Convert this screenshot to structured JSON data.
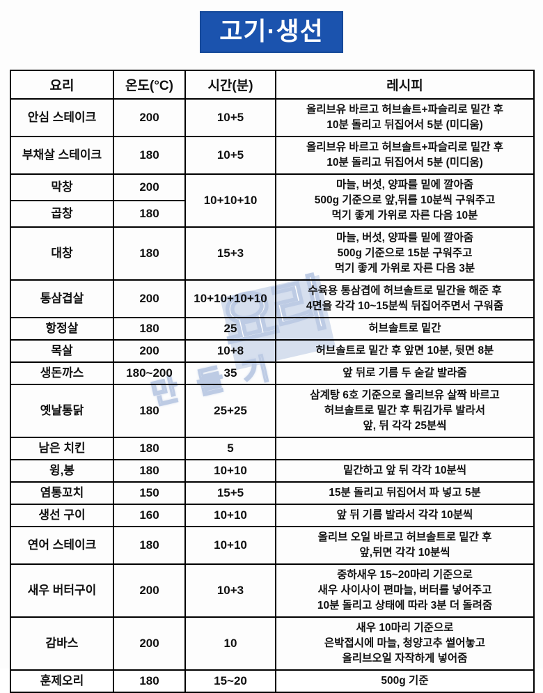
{
  "title": "고기·생선",
  "colors": {
    "title_bg": "#1b53ae",
    "title_text": "#ffffff",
    "table_border": "#000000",
    "watermark_blue": "#c6d2e8"
  },
  "watermark": {
    "main": "요리",
    "sub": "만들기"
  },
  "table": {
    "headers": [
      "요리",
      "온도(°C)",
      "시간(분)",
      "레시피"
    ],
    "rows": [
      {
        "dish": "안심 스테이크",
        "temp": "200",
        "time": "10+5",
        "recipe": [
          "올리브유 바르고 허브솔트+파슬리로 밑간 후",
          "10분 돌리고 뒤집어서 5분 (미디움)"
        ]
      },
      {
        "dish": "부채살 스테이크",
        "temp": "180",
        "time": "10+5",
        "recipe": [
          "올리브유 바르고 허브솔트+파슬리로 밑간 후",
          "10분 돌리고 뒤집어서 5분 (미디움)"
        ]
      },
      {
        "dish": "막창",
        "temp": "200",
        "time": "10+10+10",
        "time_span": 2,
        "recipe": [
          "마늘, 버섯, 양파를 밑에 깔아줌",
          "500g 기준으로 앞,뒤를 10분씩 구워주고",
          "먹기 좋게 가위로 자른 다음 10분"
        ],
        "recipe_span": 2
      },
      {
        "dish": "곱창",
        "temp": "180",
        "time": null,
        "recipe": null
      },
      {
        "dish": "대창",
        "temp": "180",
        "time": "15+3",
        "recipe": [
          "마늘, 버섯, 양파를 밑에 깔아줌",
          "500g 기준으로 15분 구워주고",
          "먹기 좋게 가위로 자른 다음 3분"
        ]
      },
      {
        "dish": "통삼겹살",
        "temp": "200",
        "time": "10+10+10+10",
        "recipe": [
          "수육용 통삼겹에 허브솔트로 밑간을 해준 후",
          "4면을 각각 10~15분씩 뒤집어주면서 구워줌"
        ]
      },
      {
        "dish": "항정살",
        "temp": "180",
        "time": "25",
        "recipe": [
          "허브솔트로 밑간"
        ]
      },
      {
        "dish": "목살",
        "temp": "200",
        "time": "10+8",
        "recipe": [
          "허브솔트로 밑간 후 앞면 10분, 뒷면 8분"
        ]
      },
      {
        "dish": "생돈까스",
        "temp": "180~200",
        "time": "35",
        "recipe": [
          "앞 뒤로 기름 두 숟갈 발라줌"
        ]
      },
      {
        "dish": "옛날통닭",
        "temp": "180",
        "time": "25+25",
        "recipe": [
          "삼계탕 6호 기준으로 올리브유 살짝 바르고",
          "허브솔트로 밑간 후 튀김가루 발라서",
          "앞, 뒤 각각 25분씩"
        ]
      },
      {
        "dish": "남은 치킨",
        "temp": "180",
        "time": "5",
        "recipe": []
      },
      {
        "dish": "윙,봉",
        "temp": "180",
        "time": "10+10",
        "recipe": [
          "밑간하고 앞 뒤 각각 10분씩"
        ]
      },
      {
        "dish": "염통꼬치",
        "temp": "150",
        "time": "15+5",
        "recipe": [
          "15분 돌리고 뒤집어서 파 넣고 5분"
        ]
      },
      {
        "dish": "생선 구이",
        "temp": "160",
        "time": "10+10",
        "recipe": [
          "앞 뒤 기름 발라서 각각 10분씩"
        ]
      },
      {
        "dish": "연어 스테이크",
        "temp": "180",
        "time": "10+10",
        "recipe": [
          "올리브 오일 바르고 허브솔트로 밑간 후",
          "앞,뒤면 각각 10분씩"
        ]
      },
      {
        "dish": "새우 버터구이",
        "temp": "200",
        "time": "10+3",
        "recipe": [
          "중하새우 15~20마리 기준으로",
          "새우 사이사이 편마늘, 버터를 넣어주고",
          "10분 돌리고 상태에 따라 3분 더 돌려줌"
        ]
      },
      {
        "dish": "감바스",
        "temp": "200",
        "time": "10",
        "recipe": [
          "새우 10마리 기준으로",
          "은박접시에 마늘, 청양고추 썰어놓고",
          "올리브오일 자작하게 넣어줌"
        ]
      },
      {
        "dish": "훈제오리",
        "temp": "180",
        "time": "15~20",
        "recipe": [
          "500g 기준"
        ]
      }
    ]
  }
}
